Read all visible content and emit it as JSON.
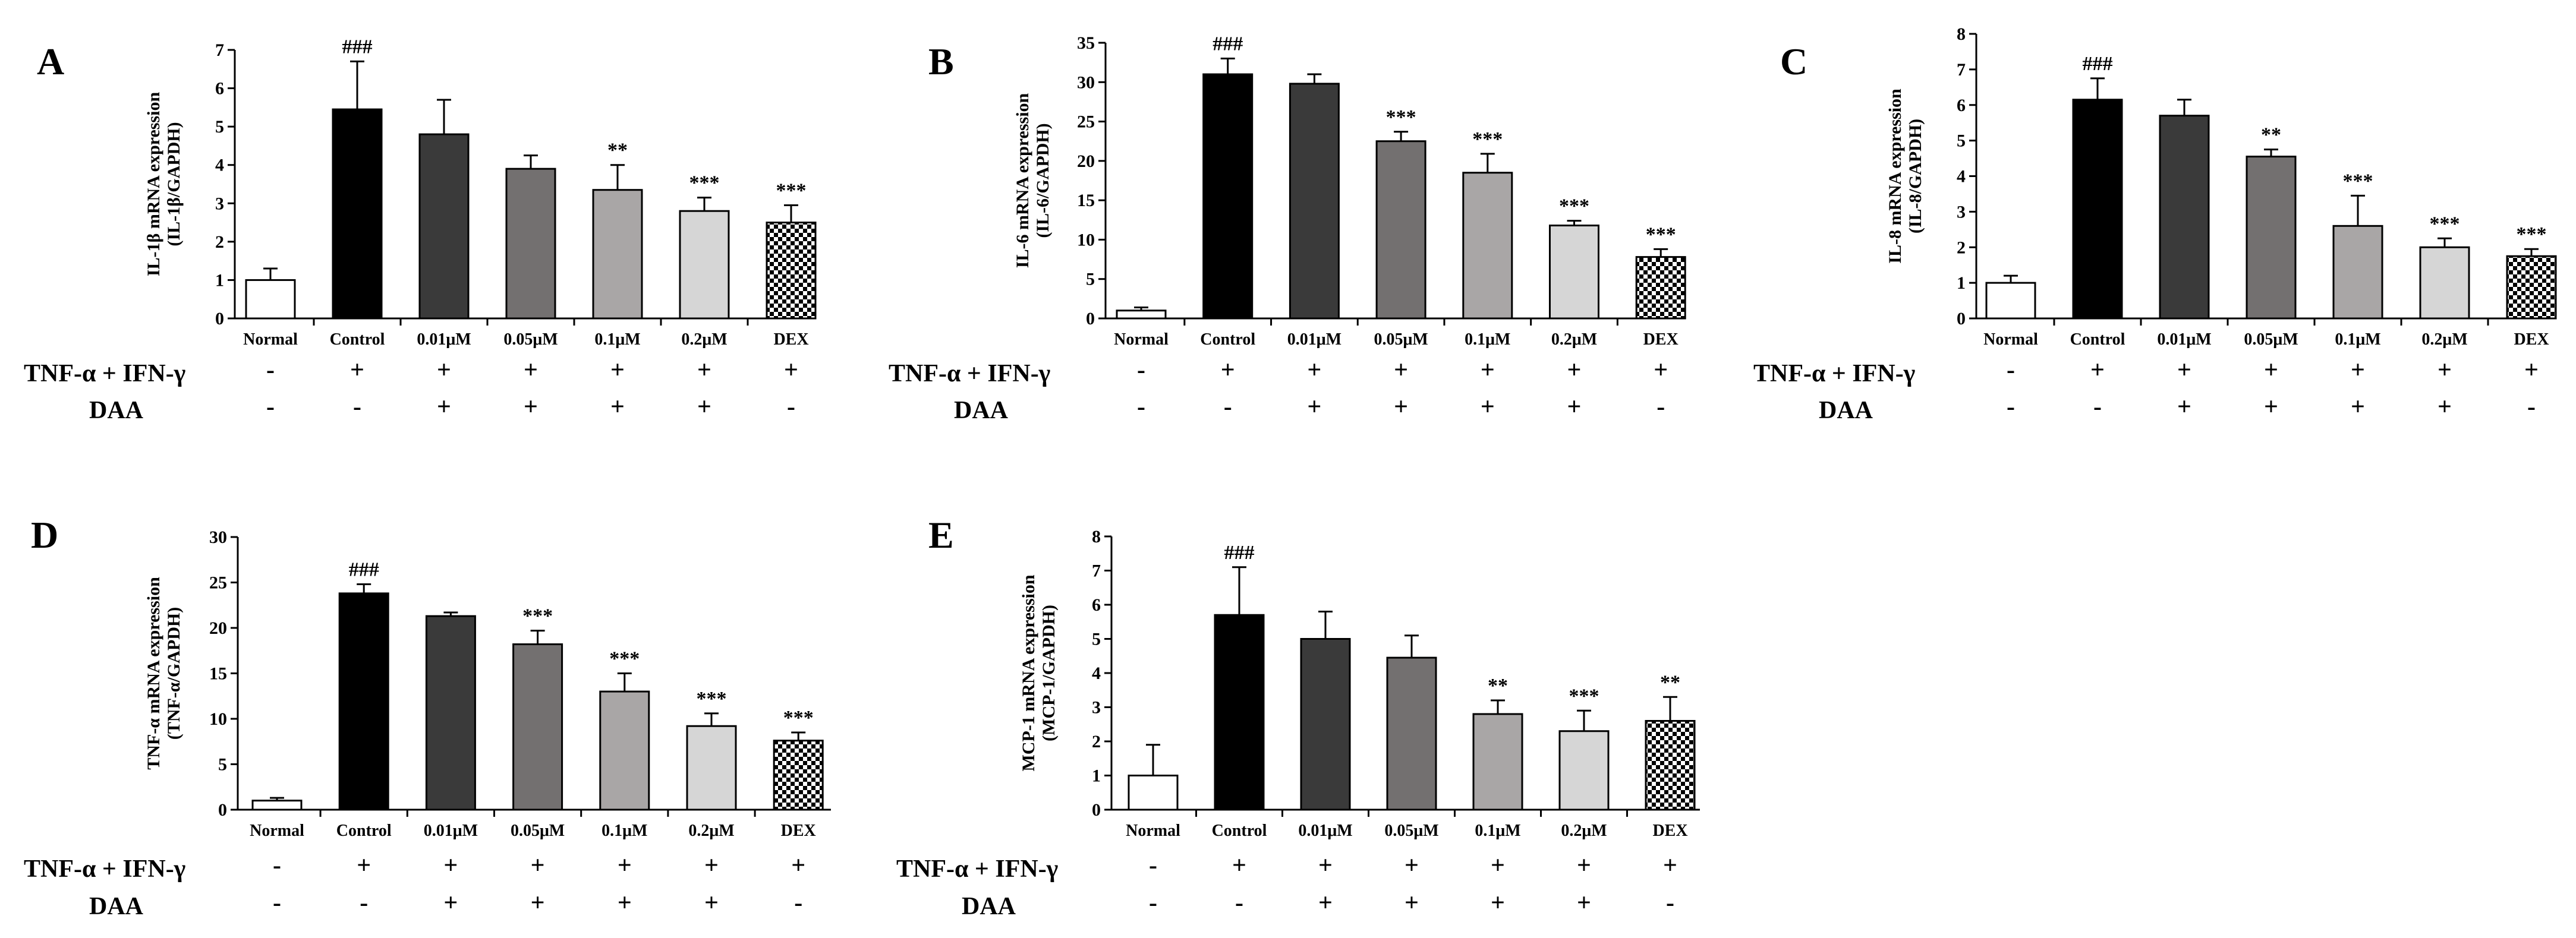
{
  "treatment_row_labels": [
    "TNF-α + IFN-γ",
    "DAA"
  ],
  "treatment_symbols": {
    "tnf_ifn": [
      "-",
      "+",
      "+",
      "+",
      "+",
      "+",
      "+"
    ],
    "daa": [
      "-",
      "-",
      "+",
      "+",
      "+",
      "+",
      "-"
    ]
  },
  "colors": {
    "bars": [
      "#ffffff",
      "#000000",
      "#3a3a3a",
      "#737070",
      "#a9a6a6",
      "#d6d6d6",
      "pattern"
    ],
    "axis": "#000000"
  },
  "chart_data": [
    {
      "type": "bar",
      "panel": "A",
      "title": "",
      "ylabel_lines": [
        "IL-1β mRNA expression",
        "(IL-1β/GAPDH)"
      ],
      "categories": [
        "Normal",
        "Control",
        "0.01μM",
        "0.05μM",
        "0.1μM",
        "0.2μM",
        "DEX"
      ],
      "values": [
        1.0,
        5.45,
        4.8,
        3.9,
        3.35,
        2.8,
        2.5
      ],
      "errors": [
        0.3,
        1.25,
        0.9,
        0.35,
        0.65,
        0.35,
        0.45
      ],
      "significance": [
        "",
        "###",
        "",
        "",
        "**",
        "***",
        "***"
      ],
      "ylim": [
        0,
        7
      ],
      "yticks": [
        "0",
        "1",
        "2",
        "3",
        "4",
        "5",
        "6",
        "7"
      ]
    },
    {
      "type": "bar",
      "panel": "B",
      "title": "",
      "ylabel_lines": [
        "IL-6 mRNA expression",
        "(IL-6/GAPDH)"
      ],
      "categories": [
        "Normal",
        "Control",
        "0.01μM",
        "0.05μM",
        "0.1μM",
        "0.2μM",
        "DEX"
      ],
      "values": [
        1.0,
        31.0,
        29.8,
        22.5,
        18.5,
        11.8,
        7.8
      ],
      "errors": [
        0.4,
        2.0,
        1.2,
        1.2,
        2.4,
        0.6,
        1.0
      ],
      "significance": [
        "",
        "###",
        "",
        "***",
        "***",
        "***",
        "***"
      ],
      "ylim": [
        0,
        35
      ],
      "yticks": [
        "0",
        "5",
        "10",
        "15",
        "20",
        "25",
        "30",
        "35"
      ]
    },
    {
      "type": "bar",
      "panel": "C",
      "title": "",
      "ylabel_lines": [
        "IL-8 mRNA expression",
        "(IL-8/GAPDH)"
      ],
      "categories": [
        "Normal",
        "Control",
        "0.01μM",
        "0.05μM",
        "0.1μM",
        "0.2μM",
        "DEX"
      ],
      "values": [
        1.0,
        6.15,
        5.7,
        4.55,
        2.6,
        2.0,
        1.75
      ],
      "errors": [
        0.2,
        0.6,
        0.45,
        0.2,
        0.85,
        0.25,
        0.2
      ],
      "significance": [
        "",
        "###",
        "",
        "**",
        "***",
        "***",
        "***"
      ],
      "ylim": [
        0,
        8
      ],
      "yticks": [
        "0",
        "1",
        "2",
        "3",
        "4",
        "5",
        "6",
        "7",
        "8"
      ]
    },
    {
      "type": "bar",
      "panel": "D",
      "title": "",
      "ylabel_lines": [
        "TNF-α mRNA expression",
        "(TNF-α/GAPDH)"
      ],
      "categories": [
        "Normal",
        "Control",
        "0.01μM",
        "0.05μM",
        "0.1μM",
        "0.2μM",
        "DEX"
      ],
      "values": [
        1.0,
        23.8,
        21.3,
        18.2,
        13.0,
        9.2,
        7.6
      ],
      "errors": [
        0.3,
        1.0,
        0.4,
        1.5,
        2.0,
        1.4,
        0.9
      ],
      "significance": [
        "",
        "###",
        "",
        "***",
        "***",
        "***",
        "***"
      ],
      "ylim": [
        0,
        30
      ],
      "yticks": [
        "0",
        "5",
        "10",
        "15",
        "20",
        "25",
        "30"
      ]
    },
    {
      "type": "bar",
      "panel": "E",
      "title": "",
      "ylabel_lines": [
        "MCP-1 mRNA expression",
        "(MCP-1/GAPDH)"
      ],
      "categories": [
        "Normal",
        "Control",
        "0.01μM",
        "0.05μM",
        "0.1μM",
        "0.2μM",
        "DEX"
      ],
      "values": [
        1.0,
        5.7,
        5.0,
        4.45,
        2.8,
        2.3,
        2.6
      ],
      "errors": [
        0.9,
        1.4,
        0.8,
        0.65,
        0.4,
        0.6,
        0.7
      ],
      "significance": [
        "",
        "###",
        "",
        "",
        "**",
        "***",
        "**"
      ],
      "ylim": [
        0,
        8
      ],
      "yticks": [
        "0",
        "1",
        "2",
        "3",
        "4",
        "5",
        "6",
        "7",
        "8"
      ]
    }
  ]
}
